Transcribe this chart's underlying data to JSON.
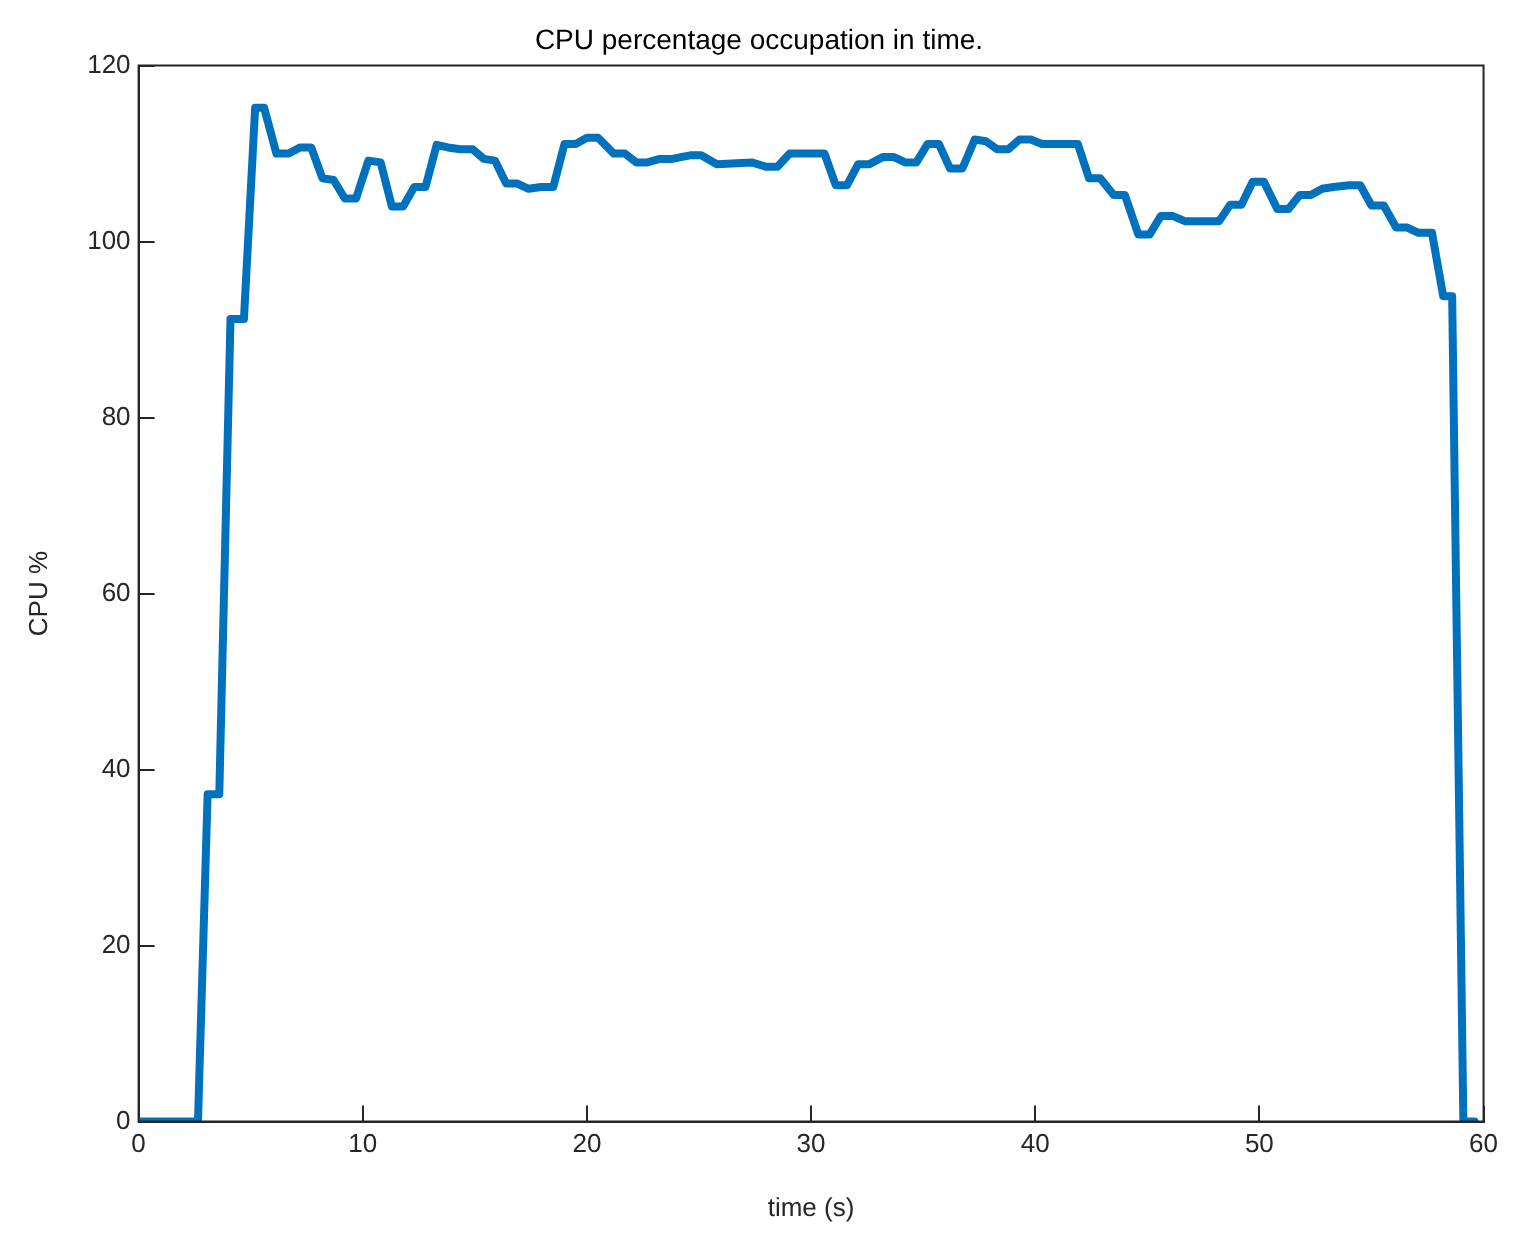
{
  "chart_data": {
    "type": "line",
    "title": "CPU percentage occupation in time.",
    "xlabel": "time (s)",
    "ylabel": "CPU %",
    "x": [
      0,
      2.65,
      3.08,
      3.6,
      4.1,
      4.7,
      5.2,
      5.6,
      6.15,
      6.7,
      7.2,
      7.7,
      8.2,
      8.7,
      9.2,
      9.7,
      10.25,
      10.8,
      11.3,
      11.8,
      12.3,
      12.8,
      13.3,
      13.8,
      14.35,
      14.9,
      15.4,
      15.9,
      16.4,
      16.9,
      17.4,
      17.95,
      18.5,
      19,
      19.5,
      20,
      20.5,
      21.2,
      21.7,
      22.2,
      22.7,
      23.25,
      23.8,
      24.6,
      25.1,
      25.8,
      27.35,
      28,
      28.5,
      29.05,
      30.1,
      30.6,
      31.1,
      31.6,
      32.1,
      32.6,
      33.2,
      33.7,
      34.2,
      34.7,
      35.2,
      35.7,
      36.2,
      36.75,
      37.3,
      37.8,
      38.3,
      38.8,
      39.3,
      39.8,
      40.3,
      41.9,
      42.4,
      42.9,
      43.5,
      44,
      44.6,
      45.1,
      45.6,
      46.15,
      46.7,
      48.2,
      48.7,
      49.2,
      49.7,
      50.2,
      50.8,
      51.3,
      51.8,
      52.3,
      52.8,
      53.3,
      54,
      54.5,
      55,
      55.55,
      56.1,
      56.6,
      57.1,
      57.7,
      58.2,
      58.6,
      59.1,
      59.6
    ],
    "series": [
      {
        "color": "#0072bd",
        "values": [
          0,
          0,
          37.2,
          37.2,
          91.2,
          91.2,
          115.2,
          115.2,
          110,
          110,
          110.7,
          110.7,
          107.2,
          107,
          104.9,
          104.9,
          109.2,
          109,
          104,
          104,
          106.2,
          106.2,
          111,
          110.7,
          110.5,
          110.5,
          109.4,
          109.2,
          106.6,
          106.6,
          106,
          106.2,
          106.2,
          111.1,
          111.1,
          111.8,
          111.8,
          110,
          110,
          109,
          109,
          109.4,
          109.4,
          109.8,
          109.8,
          108.8,
          109,
          108.5,
          108.5,
          110,
          110,
          110,
          106.4,
          106.4,
          108.8,
          108.8,
          109.6,
          109.6,
          109,
          109,
          111.1,
          111.1,
          108.3,
          108.3,
          111.6,
          111.4,
          110.5,
          110.5,
          111.6,
          111.6,
          111.1,
          111.1,
          107.2,
          107.2,
          105.3,
          105.3,
          100.8,
          100.8,
          102.9,
          102.9,
          102.3,
          102.3,
          104.2,
          104.2,
          106.8,
          106.8,
          103.7,
          103.7,
          105.3,
          105.3,
          106,
          106.2,
          106.4,
          106.4,
          104.1,
          104.1,
          101.6,
          101.6,
          101,
          101,
          93.8,
          93.8,
          0,
          0
        ]
      }
    ],
    "xlim": [
      0,
      60
    ],
    "xticks": [
      0,
      10,
      20,
      30,
      40,
      50,
      60
    ],
    "ylim": [
      0,
      120
    ],
    "yticks": [
      0,
      20,
      40,
      60,
      80,
      100,
      120
    ],
    "grid": false,
    "legend": false,
    "marker": "none",
    "line_style": "solid"
  }
}
